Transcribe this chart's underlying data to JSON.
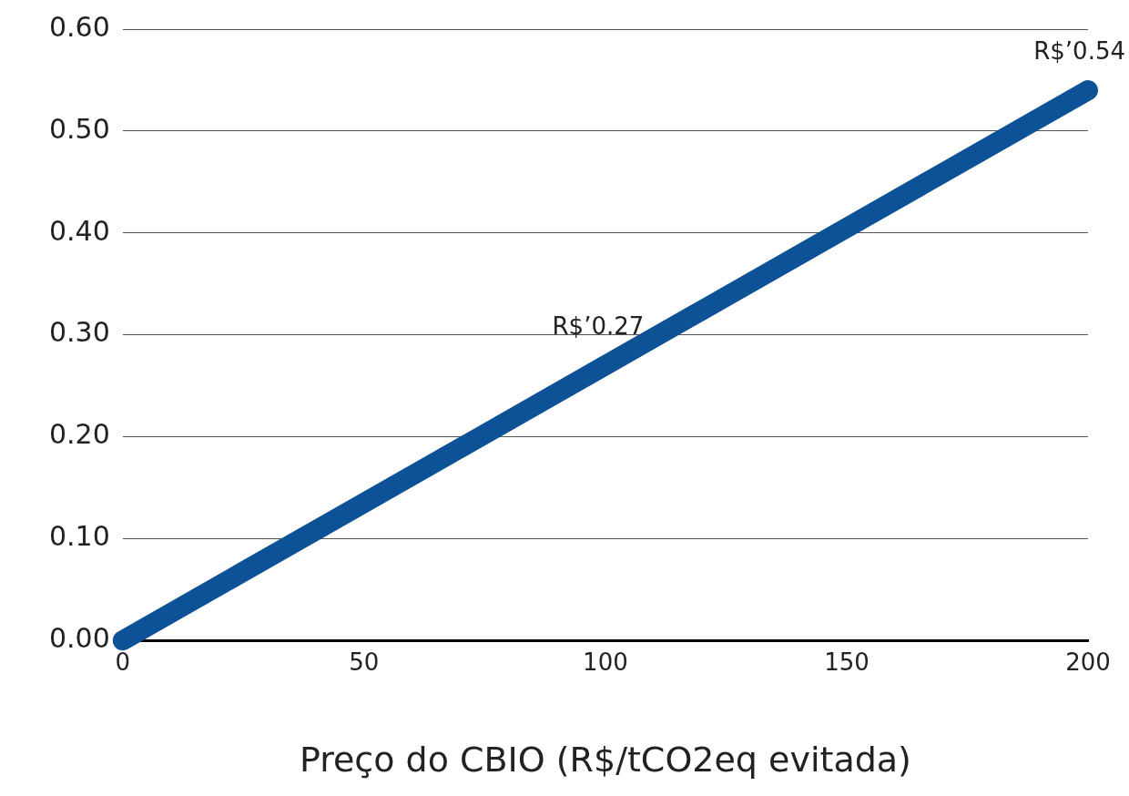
{
  "chart_data": {
    "type": "line",
    "xlabel": "Preço do CBIO (R$/tCO2eq evitada)",
    "x": [
      0,
      100,
      200
    ],
    "series": [
      {
        "color": "#0d5296",
        "values": [
          0,
          0.27,
          0.54
        ],
        "value_labels": [
          null,
          "R$’0.27",
          "R$’0.54"
        ]
      }
    ],
    "xlim": [
      0,
      200
    ],
    "xticks": [
      0,
      50,
      100,
      150,
      200
    ],
    "ylim": [
      0,
      0.6
    ],
    "yticks": [
      {
        "value": 0,
        "label": "0.00"
      },
      {
        "value": 0.1,
        "label": "0.10"
      },
      {
        "value": 0.2,
        "label": "0.20"
      },
      {
        "value": 0.3,
        "label": "0.30"
      },
      {
        "value": 0.4,
        "label": "0.40"
      },
      {
        "value": 0.5,
        "label": "0.50"
      },
      {
        "value": 0.6,
        "label": "0.60"
      }
    ],
    "grid": "y",
    "marker": "none",
    "line_style": "solid"
  }
}
